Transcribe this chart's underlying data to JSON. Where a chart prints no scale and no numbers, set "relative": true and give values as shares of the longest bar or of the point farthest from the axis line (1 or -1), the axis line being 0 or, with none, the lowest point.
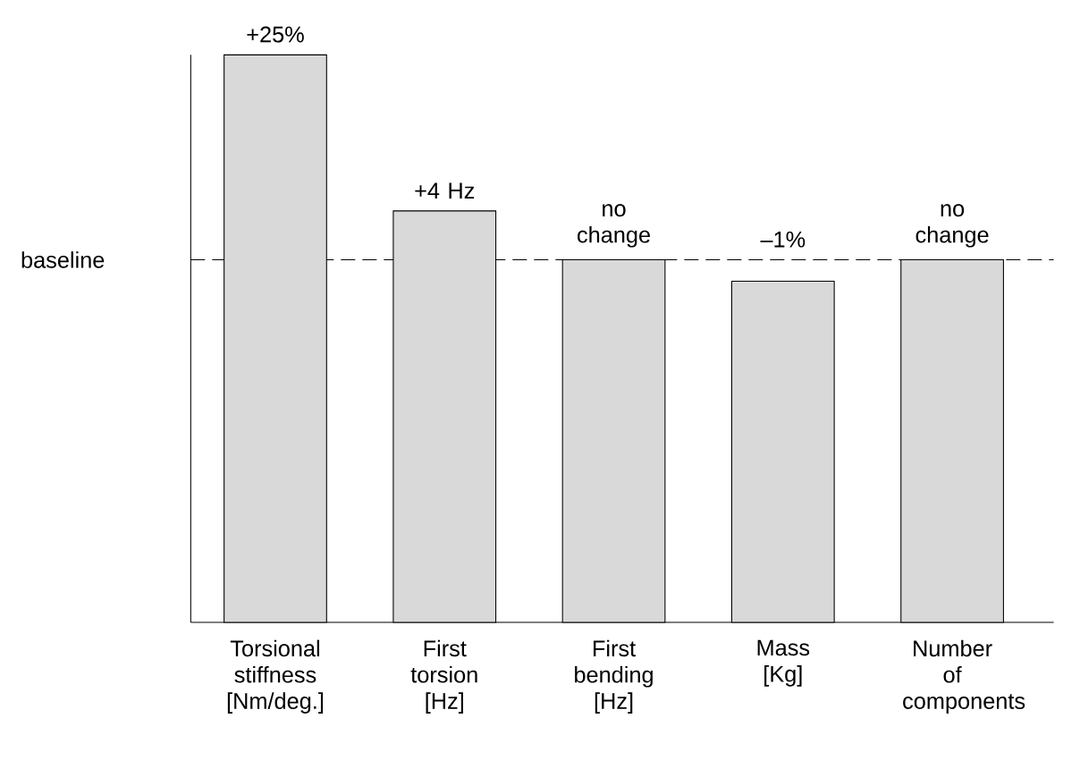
{
  "chart_data": {
    "type": "bar",
    "relative": true,
    "color": "#d9d9d9",
    "categories": [
      "Torsional stiffness [Nm/deg.]",
      "First torsion [Hz]",
      "First bending [Hz]",
      "Mass [Kg]",
      "Number of components"
    ],
    "values": [
      1,
      0.725,
      0.639,
      0.601,
      0.639
    ],
    "annotations": [
      {
        "text": "+25%",
        "x": "Torsional stiffness [Nm/deg.]",
        "y": 1
      },
      {
        "text": "+4 Hz",
        "x": "First torsion [Hz]",
        "y": 0.725
      },
      {
        "text": "no change",
        "x": "First bending [Hz]",
        "y": 0.639
      },
      {
        "text": "–1%",
        "x": "Mass [Kg]",
        "y": 0.601
      },
      {
        "text": "no change",
        "x": "Number of components",
        "y": 0.639
      }
    ],
    "ref_lines": [
      {
        "axis": "y",
        "value": 0.639,
        "label": "baseline",
        "line_style": "dashed",
        "color": "#000000"
      }
    ]
  }
}
